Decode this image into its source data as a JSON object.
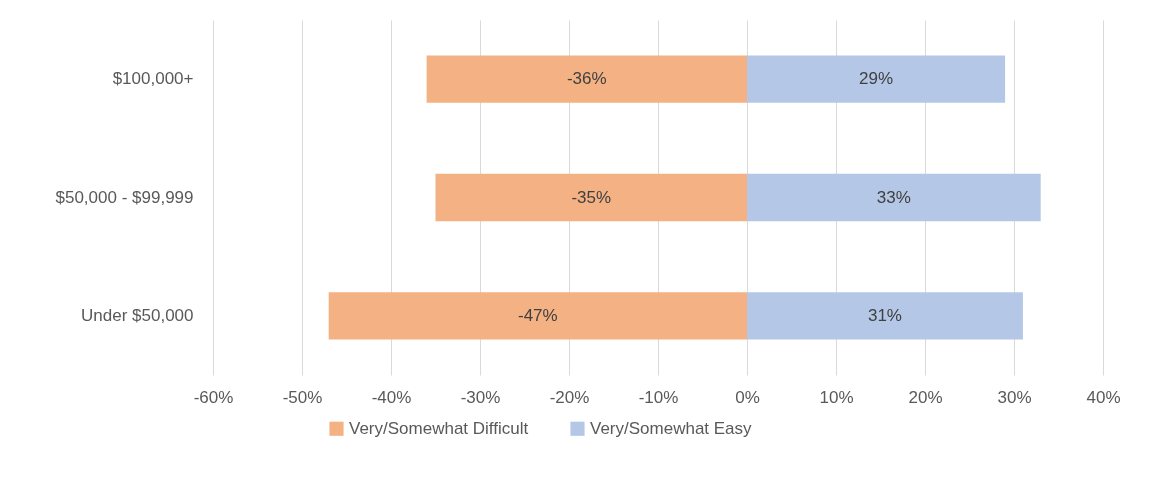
{
  "chart_data": {
    "type": "bar",
    "orientation": "horizontal",
    "stacked": true,
    "categories": [
      "$100,000+",
      "$50,000 - $99,999",
      "Under $50,000"
    ],
    "series": [
      {
        "name": "Very/Somewhat Difficult",
        "color": "#f4b183",
        "values": [
          -36,
          -35,
          -47
        ]
      },
      {
        "name": "Very/Somewhat Easy",
        "color": "#b4c7e7",
        "values": [
          29,
          33,
          31
        ]
      }
    ],
    "xlim": [
      -60,
      40
    ],
    "xticks": [
      {
        "value": -60,
        "label": "-60%"
      },
      {
        "value": -50,
        "label": "-50%"
      },
      {
        "value": -40,
        "label": "-40%"
      },
      {
        "value": -30,
        "label": "-30%"
      },
      {
        "value": -20,
        "label": "-20%"
      },
      {
        "value": -10,
        "label": "-10%"
      },
      {
        "value": 0,
        "label": "0%"
      },
      {
        "value": 10,
        "label": "10%"
      },
      {
        "value": 20,
        "label": "20%"
      },
      {
        "value": 30,
        "label": "30%"
      },
      {
        "value": 40,
        "label": "40%"
      }
    ],
    "value_labels": [
      [
        "-36%",
        "-35%",
        "-47%"
      ],
      [
        "29%",
        "33%",
        "31%"
      ]
    ],
    "grid": "x",
    "legend": "bottom"
  }
}
